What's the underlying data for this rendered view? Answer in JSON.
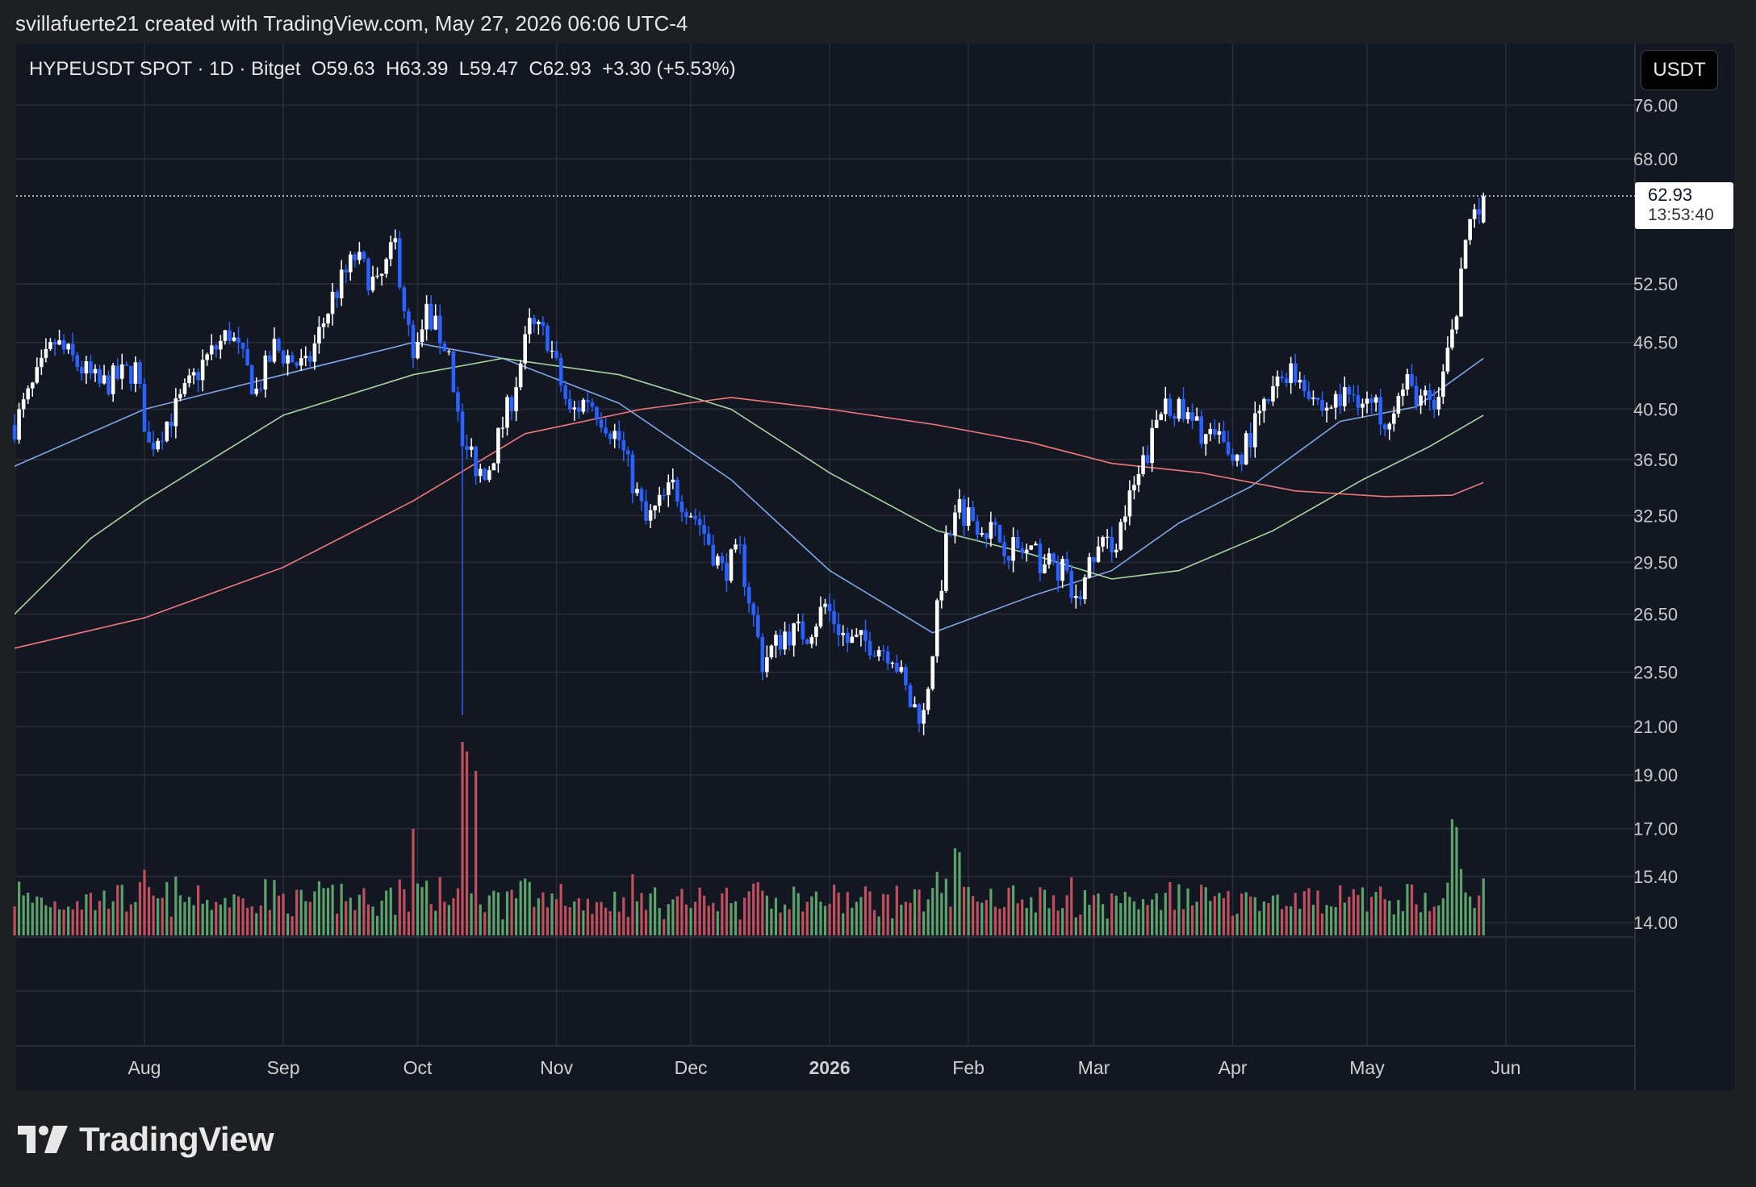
{
  "caption": "svillafuerte21 created with TradingView.com, May 27, 2026 06:06 UTC-4",
  "legend": "HYPEUSDT SPOT · 1D · Bitget  O59.63  H63.39  L59.47  C62.93  +3.30 (+5.53%)",
  "currency_button": "USDT",
  "last_price": {
    "value": "62.93",
    "timer": "13:53:40"
  },
  "footer": {
    "brand": "TradingView"
  },
  "colors": {
    "background": "#131722",
    "up": "#ffffff",
    "down": "#2962ff",
    "vol_up": "#5ba36a",
    "vol_down": "#c24f5d",
    "ma_fast": "#7ea6e8",
    "ma_mid": "#a8d5a0",
    "ma_slow": "#f0787a"
  },
  "chart_data": {
    "type": "candlestick",
    "y_ticks": [
      "76.00",
      "68.00",
      "52.50",
      "46.50",
      "40.50",
      "36.50",
      "32.50",
      "29.50",
      "26.50",
      "23.50",
      "21.00",
      "19.00",
      "17.00",
      "15.40",
      "14.00"
    ],
    "y_scale": "log",
    "x_ticks": [
      {
        "label": "Aug",
        "date": "2025-08-01"
      },
      {
        "label": "Sep",
        "date": "2025-09-01"
      },
      {
        "label": "Oct",
        "date": "2025-10-01"
      },
      {
        "label": "Nov",
        "date": "2025-11-01"
      },
      {
        "label": "Dec",
        "date": "2025-12-01"
      },
      {
        "label": "2026",
        "date": "2026-01-01"
      },
      {
        "label": "Feb",
        "date": "2026-02-01"
      },
      {
        "label": "Mar",
        "date": "2026-03-01"
      },
      {
        "label": "Apr",
        "date": "2026-04-01"
      },
      {
        "label": "May",
        "date": "2026-05-01"
      },
      {
        "label": "Jun",
        "date": "2026-06-01"
      }
    ],
    "price_keyframes": [
      [
        "2025-07-03",
        39.2
      ],
      [
        "2025-07-12",
        46.5
      ],
      [
        "2025-07-22",
        42.5
      ],
      [
        "2025-07-30",
        44.0
      ],
      [
        "2025-08-02",
        37.5
      ],
      [
        "2025-08-08",
        40.5
      ],
      [
        "2025-08-14",
        44.5
      ],
      [
        "2025-08-20",
        47.5
      ],
      [
        "2025-08-26",
        42.0
      ],
      [
        "2025-08-30",
        46.0
      ],
      [
        "2025-09-06",
        44.0
      ],
      [
        "2025-09-12",
        51.0
      ],
      [
        "2025-09-17",
        55.5
      ],
      [
        "2025-09-22",
        52.0
      ],
      [
        "2025-09-26",
        57.0
      ],
      [
        "2025-09-30",
        44.5
      ],
      [
        "2025-10-03",
        49.5
      ],
      [
        "2025-10-08",
        45.5
      ],
      [
        "2025-10-11",
        37.5
      ],
      [
        "2025-10-16",
        35.0
      ],
      [
        "2025-10-22",
        41.5
      ],
      [
        "2025-10-26",
        48.0
      ],
      [
        "2025-10-30",
        47.0
      ],
      [
        "2025-11-04",
        40.0
      ],
      [
        "2025-11-08",
        41.5
      ],
      [
        "2025-11-15",
        38.0
      ],
      [
        "2025-11-21",
        32.0
      ],
      [
        "2025-11-27",
        34.5
      ],
      [
        "2025-12-03",
        32.0
      ],
      [
        "2025-12-08",
        29.0
      ],
      [
        "2025-12-12",
        30.0
      ],
      [
        "2025-12-17",
        24.0
      ],
      [
        "2025-12-22",
        25.5
      ],
      [
        "2025-12-27",
        25.5
      ],
      [
        "2025-12-31",
        27.0
      ],
      [
        "2026-01-05",
        25.0
      ],
      [
        "2026-01-10",
        25.0
      ],
      [
        "2026-01-15",
        24.5
      ],
      [
        "2026-01-19",
        22.0
      ],
      [
        "2026-01-22",
        21.5
      ],
      [
        "2026-01-27",
        30.5
      ],
      [
        "2026-01-30",
        33.0
      ],
      [
        "2026-02-04",
        32.0
      ],
      [
        "2026-02-10",
        30.5
      ],
      [
        "2026-02-16",
        29.8
      ],
      [
        "2026-02-22",
        29.0
      ],
      [
        "2026-02-25",
        27.0
      ],
      [
        "2026-03-01",
        30.0
      ],
      [
        "2026-03-06",
        31.0
      ],
      [
        "2026-03-12",
        36.0
      ],
      [
        "2026-03-17",
        41.5
      ],
      [
        "2026-03-22",
        39.5
      ],
      [
        "2026-03-28",
        38.0
      ],
      [
        "2026-04-02",
        36.5
      ],
      [
        "2026-04-08",
        40.5
      ],
      [
        "2026-04-13",
        44.0
      ],
      [
        "2026-04-17",
        43.0
      ],
      [
        "2026-04-21",
        40.5
      ],
      [
        "2026-04-28",
        42.0
      ],
      [
        "2026-05-05",
        40.0
      ],
      [
        "2026-05-10",
        42.5
      ],
      [
        "2026-05-16",
        40.5
      ],
      [
        "2026-05-20",
        46.5
      ],
      [
        "2026-05-23",
        57.5
      ],
      [
        "2026-05-25",
        62.0
      ],
      [
        "2026-05-27",
        62.93
      ]
    ],
    "moving_averages": [
      {
        "color_key": "ma_fast",
        "points": [
          [
            "2025-07-03",
            36.0
          ],
          [
            "2025-08-01",
            40.5
          ],
          [
            "2025-09-01",
            43.5
          ],
          [
            "2025-09-30",
            46.5
          ],
          [
            "2025-10-20",
            45.0
          ],
          [
            "2025-11-15",
            41.0
          ],
          [
            "2025-12-10",
            35.0
          ],
          [
            "2026-01-01",
            29.0
          ],
          [
            "2026-01-24",
            25.5
          ],
          [
            "2026-02-15",
            27.5
          ],
          [
            "2026-03-05",
            29.0
          ],
          [
            "2026-03-20",
            32.0
          ],
          [
            "2026-04-05",
            34.5
          ],
          [
            "2026-04-25",
            39.5
          ],
          [
            "2026-05-12",
            40.7
          ],
          [
            "2026-05-27",
            45.0
          ]
        ]
      },
      {
        "color_key": "ma_mid",
        "points": [
          [
            "2025-07-03",
            26.5
          ],
          [
            "2025-07-20",
            31.0
          ],
          [
            "2025-08-01",
            33.5
          ],
          [
            "2025-09-01",
            40.0
          ],
          [
            "2025-09-30",
            43.5
          ],
          [
            "2025-10-20",
            45.0
          ],
          [
            "2025-11-15",
            43.5
          ],
          [
            "2025-12-10",
            40.5
          ],
          [
            "2026-01-01",
            35.5
          ],
          [
            "2026-01-25",
            31.5
          ],
          [
            "2026-02-15",
            30.0
          ],
          [
            "2026-03-05",
            28.5
          ],
          [
            "2026-03-20",
            29.0
          ],
          [
            "2026-04-10",
            31.5
          ],
          [
            "2026-04-30",
            35.0
          ],
          [
            "2026-05-15",
            37.5
          ],
          [
            "2026-05-27",
            40.0
          ]
        ]
      },
      {
        "color_key": "ma_slow",
        "points": [
          [
            "2025-07-03",
            24.7
          ],
          [
            "2025-08-01",
            26.3
          ],
          [
            "2025-09-01",
            29.2
          ],
          [
            "2025-09-30",
            33.5
          ],
          [
            "2025-10-25",
            38.5
          ],
          [
            "2025-11-20",
            40.5
          ],
          [
            "2025-12-10",
            41.5
          ],
          [
            "2026-01-01",
            40.5
          ],
          [
            "2026-01-25",
            39.2
          ],
          [
            "2026-02-15",
            37.8
          ],
          [
            "2026-03-05",
            36.2
          ],
          [
            "2026-03-25",
            35.5
          ],
          [
            "2026-04-15",
            34.2
          ],
          [
            "2026-05-05",
            33.8
          ],
          [
            "2026-05-20",
            33.9
          ],
          [
            "2026-05-27",
            34.8
          ]
        ]
      }
    ],
    "volume_spikes": [
      [
        "2025-09-30",
        0.55
      ],
      [
        "2025-10-11",
        1.0
      ],
      [
        "2025-10-12",
        0.95
      ],
      [
        "2025-10-14",
        0.85
      ],
      [
        "2026-01-29",
        0.45
      ],
      [
        "2026-01-30",
        0.43
      ],
      [
        "2026-05-20",
        0.6
      ],
      [
        "2026-05-21",
        0.56
      ]
    ],
    "last_bar": {
      "date": "2026-05-27",
      "open": 59.63,
      "high": 63.39,
      "low": 59.47,
      "close": 62.93
    }
  }
}
